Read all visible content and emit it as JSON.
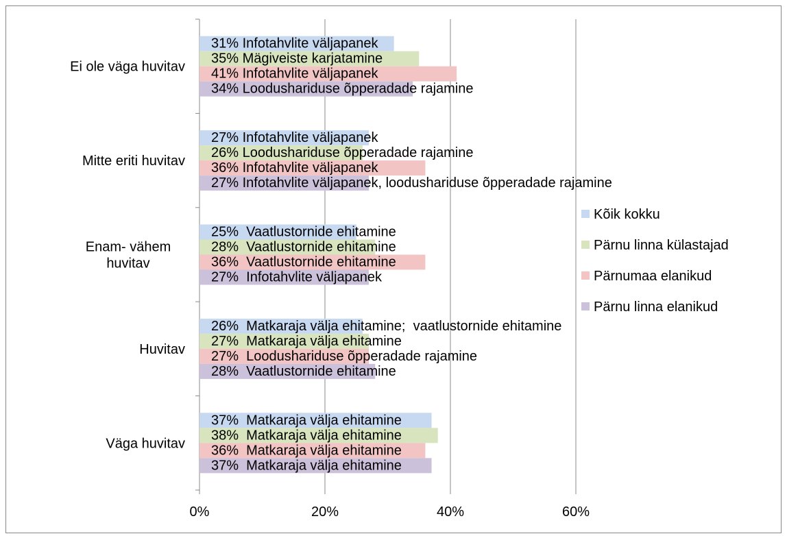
{
  "chart_data": {
    "type": "bar",
    "orientation": "horizontal",
    "categories": [
      "Ei ole väga huvitav",
      "Mitte eriti huvitav",
      "Enam- vähem huvitav",
      "Huvitav",
      "Väga huvitav"
    ],
    "series": [
      {
        "name": "Kõik kokku",
        "color": "#c6d9f1",
        "values": [
          31,
          27,
          25,
          26,
          37
        ],
        "value_labels": [
          "31% Infotahvlite väljapanek",
          "27% Infotahvlite väljapanek",
          "25%  Vaatlustornide ehitamine",
          "26%  Matkaraja välja ehitamine;  vaatlustornide ehitamine",
          "37%  Matkaraja välja ehitamine"
        ]
      },
      {
        "name": "Pärnu linna külastajad",
        "color": "#d7e4bd",
        "values": [
          35,
          26,
          28,
          27,
          38
        ],
        "value_labels": [
          "35% Mägiveiste karjatamine",
          "26% Loodushariduse õpperadade rajamine",
          "28%  Vaatlustornide ehitamine",
          "27%  Matkaraja välja ehitamine",
          "38%  Matkaraja välja ehitamine"
        ]
      },
      {
        "name": "Pärnumaa elanikud",
        "color": "#f2c4c4",
        "values": [
          41,
          36,
          36,
          27,
          36
        ],
        "value_labels": [
          "41% Infotahvlite väljapanek",
          "36% Infotahvlite väljapanek",
          "36%  Vaatlustornide ehitamine",
          "27%  Loodushariduse õpperadade rajamine",
          "36%  Matkaraja välja ehitamine"
        ]
      },
      {
        "name": "Pärnu linna elanikud",
        "color": "#ccc1da",
        "values": [
          34,
          27,
          27,
          28,
          37
        ],
        "value_labels": [
          "34% Loodushariduse õpperadade rajamine",
          "27% Infotahvlite väljapanek, loodushariduse õpperadade rajamine",
          "27%  Infotahvlite väljapanek",
          "28%  Vaatlustornide ehitamine",
          "37%  Matkaraja välja ehitamine"
        ]
      }
    ],
    "xlim": [
      0,
      60
    ],
    "xticks": [
      {
        "value": 0,
        "label": "0%"
      },
      {
        "value": 20,
        "label": "20%"
      },
      {
        "value": 40,
        "label": "40%"
      },
      {
        "value": 60,
        "label": "60%"
      }
    ],
    "grid": true,
    "legend": "right"
  }
}
